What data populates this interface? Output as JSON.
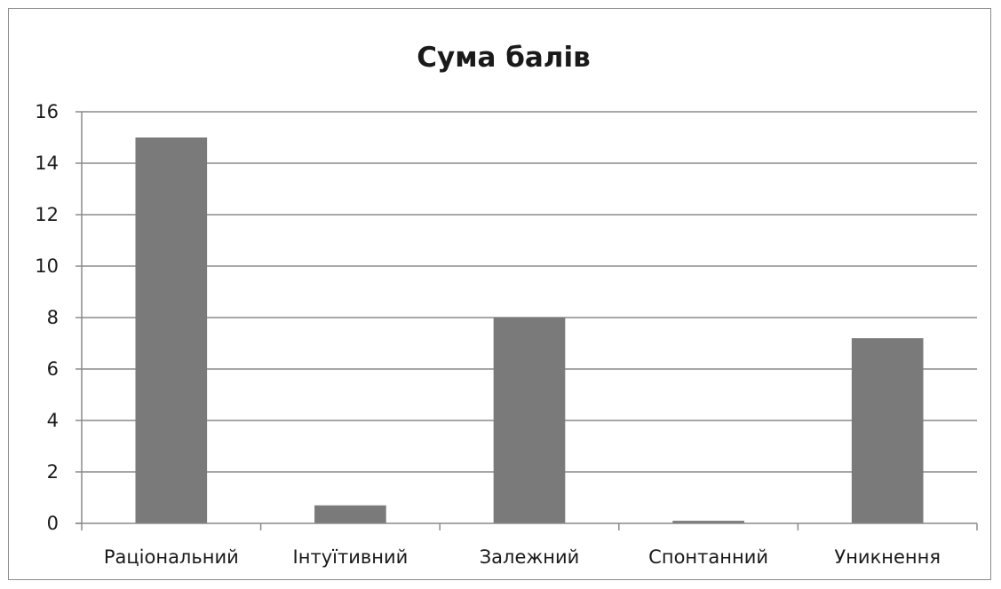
{
  "chart_data": {
    "type": "bar",
    "title": "Сума балів",
    "xlabel": "",
    "ylabel": "",
    "categories": [
      "Раціональний",
      "Інтуїтивний",
      "Залежний",
      "Спонтанний",
      "Уникнення"
    ],
    "values": [
      15,
      0.7,
      8,
      0.1,
      7.2
    ],
    "ylim": [
      0,
      16
    ],
    "yticks": [
      "0",
      "2",
      "4",
      "6",
      "8",
      "10",
      "12",
      "14",
      "16"
    ],
    "grid": true,
    "legend": "none",
    "bar_color": "#7a7a7a",
    "grid_color": "#8a8a8a"
  }
}
